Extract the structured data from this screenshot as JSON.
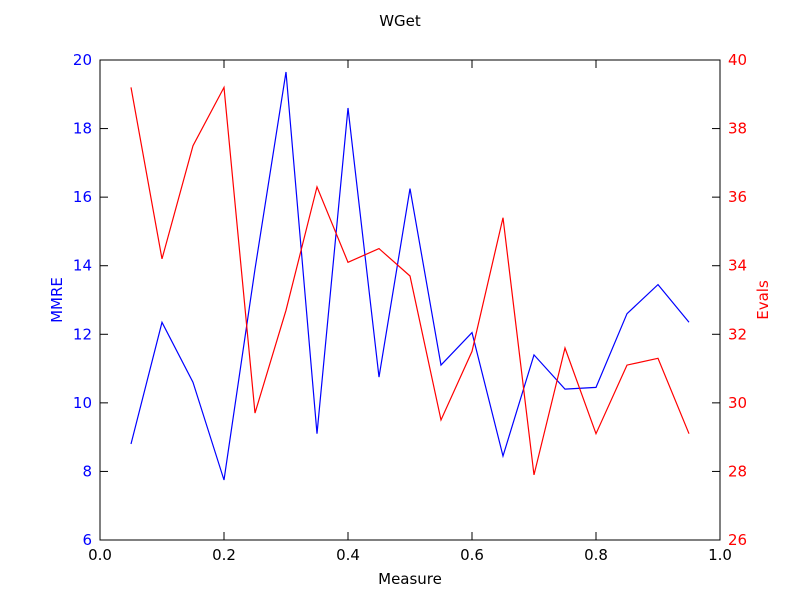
{
  "chart_data": {
    "type": "line",
    "title": "WGet",
    "xlabel": "Measure",
    "ylabel_left": "MMRE",
    "ylabel_right": "Evals",
    "xlim": [
      0.0,
      1.0
    ],
    "ylim_left": [
      6,
      20
    ],
    "ylim_right": [
      26,
      40
    ],
    "x_ticks": [
      "0.0",
      "0.2",
      "0.4",
      "0.6",
      "0.8",
      "1.0"
    ],
    "y_left_ticks": [
      "6",
      "8",
      "10",
      "12",
      "14",
      "16",
      "18",
      "20"
    ],
    "y_right_ticks": [
      "26",
      "28",
      "30",
      "32",
      "34",
      "36",
      "38",
      "40"
    ],
    "colors": {
      "left": "#0000ff",
      "right": "#ff0000",
      "axes": "#000000"
    },
    "grid": false,
    "x": [
      0.05,
      0.1,
      0.15,
      0.2,
      0.25,
      0.3,
      0.35,
      0.4,
      0.45,
      0.5,
      0.55,
      0.6,
      0.65,
      0.7,
      0.75,
      0.8,
      0.85,
      0.9,
      0.95
    ],
    "series": [
      {
        "axis": "left",
        "color": "#0000ff",
        "values": [
          8.8,
          12.35,
          10.6,
          7.75,
          13.9,
          19.65,
          9.1,
          18.6,
          10.75,
          16.25,
          11.1,
          12.05,
          8.45,
          11.4,
          10.4,
          10.45,
          12.6,
          13.45,
          12.35
        ]
      },
      {
        "axis": "right",
        "color": "#ff0000",
        "values": [
          39.2,
          34.2,
          37.5,
          39.2,
          29.7,
          32.7,
          36.3,
          34.1,
          34.5,
          33.7,
          29.5,
          31.5,
          35.4,
          27.9,
          31.6,
          29.1,
          31.1,
          31.3,
          29.1
        ]
      }
    ]
  }
}
